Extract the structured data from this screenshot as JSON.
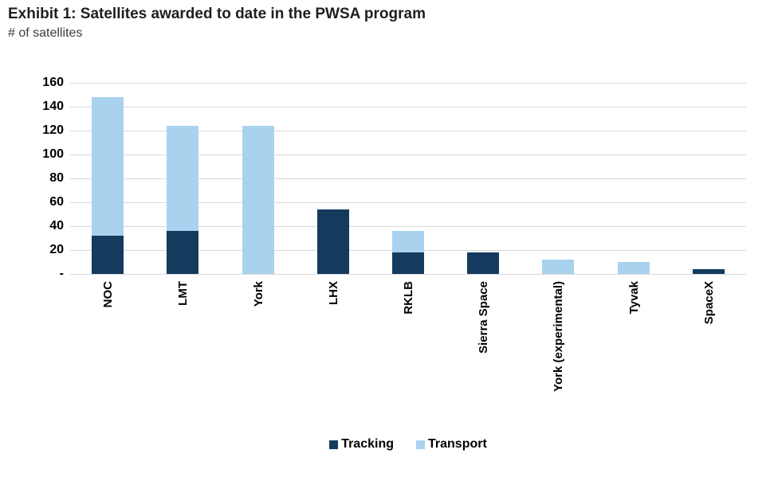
{
  "page": {
    "title": "Exhibit 1: Satellites awarded to date in the PWSA program",
    "subtitle": "# of satellites"
  },
  "colors": {
    "tracking": "#143A5E",
    "transport": "#A9D2EF",
    "gridline": "#D9D9D9",
    "text": "#000000",
    "title_text": "#1F1F1F"
  },
  "chart_data": {
    "type": "bar",
    "stacked": true,
    "title": "Exhibit 1: Satellites awarded to date in the PWSA program",
    "subtitle": "# of satellites",
    "xlabel": "",
    "ylabel": "# of satellites",
    "categories": [
      "NOC",
      "LMT",
      "York",
      "LHX",
      "RKLB",
      "Sierra Space",
      "York (experimental)",
      "Tyvak",
      "SpaceX"
    ],
    "series": [
      {
        "name": "Tracking",
        "color": "#143A5E",
        "values": [
          32,
          36,
          0,
          54,
          18,
          18,
          0,
          0,
          4
        ]
      },
      {
        "name": "Transport",
        "color": "#A9D2EF",
        "values": [
          116,
          88,
          124,
          0,
          18,
          0,
          12,
          10,
          0
        ]
      }
    ],
    "totals": [
      148,
      124,
      124,
      54,
      36,
      18,
      12,
      10,
      4
    ],
    "ylim": [
      0,
      160
    ],
    "yticks": [
      160,
      140,
      120,
      100,
      80,
      60,
      40,
      20,
      0
    ],
    "ytick_labels": [
      "160",
      "140",
      "120",
      "100",
      "80",
      "60",
      "40",
      "20",
      "-"
    ],
    "grid": true,
    "legend_position": "bottom"
  }
}
